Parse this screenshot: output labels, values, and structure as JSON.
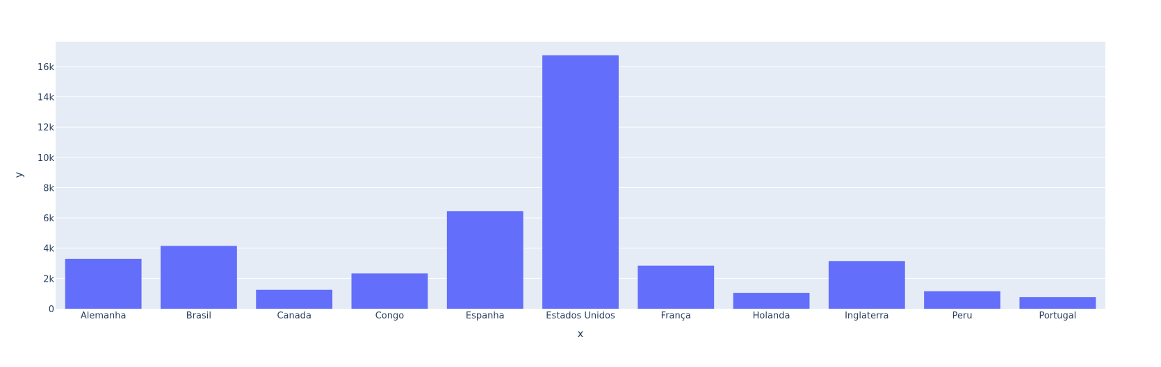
{
  "colors": {
    "bar": "#636efa",
    "plot_bg": "#e5ecf6",
    "grid": "#ffffff",
    "text": "#2a3f5f",
    "paper_bg": "#ffffff"
  },
  "chart_data": {
    "type": "bar",
    "title": "",
    "xlabel": "x",
    "ylabel": "y",
    "categories": [
      "Alemanha",
      "Brasil",
      "Canada",
      "Congo",
      "Espanha",
      "Estados Unidos",
      "França",
      "Holanda",
      "Inglaterra",
      "Peru",
      "Portugal"
    ],
    "values": [
      3300,
      4150,
      1250,
      2330,
      6450,
      16750,
      2850,
      1050,
      3150,
      1150,
      770
    ],
    "ylim": [
      0,
      17650
    ],
    "yticks": [
      0,
      2000,
      4000,
      6000,
      8000,
      10000,
      12000,
      14000,
      16000
    ],
    "ytick_labels": [
      "0",
      "2k",
      "4k",
      "6k",
      "8k",
      "10k",
      "12k",
      "14k",
      "16k"
    ],
    "grid": true
  }
}
